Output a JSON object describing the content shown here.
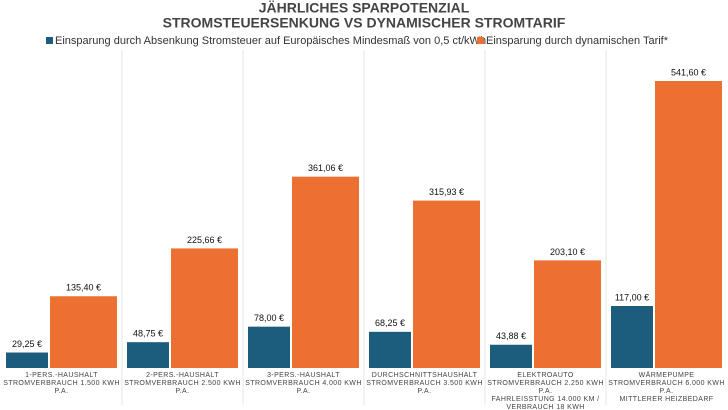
{
  "chart_data": {
    "type": "bar",
    "title": [
      "JÄHRLICHES SPARPOTENZIAL",
      "STROMSTEUERSENKUNG VS DYNAMISCHER STROMTARIF"
    ],
    "categories": [
      [
        "1-PERS.-HAUSHALT",
        "STROMVERBRAUCH 1.500 KWH",
        "P.A."
      ],
      [
        "2-PERS.-HAUSHALT",
        "STROMVERBRAUCH 2.500 KWH",
        "P.A."
      ],
      [
        "3-PERS.-HAUSHALT",
        "STROMVERBRAUCH  4.000  KWH",
        "P.A."
      ],
      [
        "DURCHSCHNITTSHAUSHALT",
        "STROMVERBRAUCH  3.500 KWH",
        "P.A."
      ],
      [
        "ELEKTROAUTO",
        "STROMVERBRAUCH  2.250 KWH",
        "P.A.",
        "FAHRLEISSTUNG 14.000 KM /",
        "VERBRAUCH 18 KWH"
      ],
      [
        "WÄRMEPUMPE",
        "STROMVERBRAUCH  6.000 KWH",
        "P.A.",
        "MITTLERER HEIZBEDARF"
      ]
    ],
    "series": [
      {
        "name": "Einsparung durch Absenkung  Stromsteuer auf Europäisches Mindesmaß von 0,5 ct/kWh",
        "color": "#1c5d7e",
        "values": [
          29.25,
          48.75,
          78.0,
          68.25,
          43.88,
          117.0
        ],
        "value_labels": [
          "29,25 €",
          "48,75 €",
          "78,00 €",
          "68,25 €",
          "43,88 €",
          "117,00 €"
        ]
      },
      {
        "name": "Einsparung durch dynamischen Tarif*",
        "color": "#ec7032",
        "values": [
          135.4,
          225.66,
          361.06,
          315.93,
          203.1,
          541.6
        ],
        "value_labels": [
          "135,40 €",
          "225,66 €",
          "361,06 €",
          "315,93 €",
          "203,10 €",
          "541,60 €"
        ]
      }
    ]
  }
}
